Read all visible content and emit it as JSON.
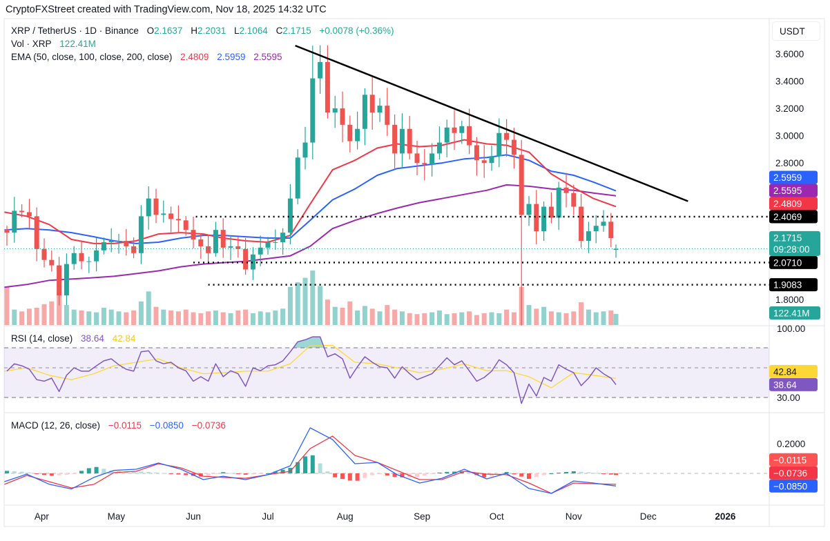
{
  "attribution": "CryptoFXStreet created with TradingView.com, Nov 18, 2025 14:32 UTC",
  "legend": {
    "symbol": "XRP / TetherUS · 1D · Binance",
    "o_label": "O",
    "open": "2.1637",
    "h_label": "H",
    "high": "2.2031",
    "l_label": "L",
    "low": "2.1064",
    "c_label": "C",
    "close": "2.1715",
    "change": "+0.0078 (+0.36%)",
    "vol_label": "Vol · XRP",
    "vol": "122.41M",
    "ema_label": "EMA (50, close, 100, close, 200, close)",
    "ema50": "2.4809",
    "ema100": "2.5959",
    "ema200": "2.5595"
  },
  "rsi_legend": {
    "label": "RSI (14, close)",
    "rsi": "38.64",
    "ma": "42.84"
  },
  "macd_legend": {
    "label": "MACD (12, 26, close)",
    "hist": "−0.0115",
    "macd": "−0.0850",
    "signal": "−0.0736"
  },
  "price_axis": {
    "currency": "USDT",
    "ticks": [
      "3.6000",
      "3.4000",
      "3.2000",
      "3.0000",
      "2.8000",
      "1.8000"
    ],
    "badges": [
      {
        "label": "2.5959",
        "value": 2.5959,
        "color": "#2962ff"
      },
      {
        "label": "2.5595",
        "value": 2.5595,
        "color": "#9c27b0"
      },
      {
        "label": "2.4809",
        "value": 2.4809,
        "color": "#f23645"
      },
      {
        "label": "2.4069",
        "value": 2.4069,
        "color": "#000000"
      },
      {
        "label": "2.1715",
        "sub": "09:28:00",
        "value": 2.1715,
        "color": "#26a69a"
      },
      {
        "label": "2.0710",
        "value": 2.071,
        "color": "#000000"
      },
      {
        "label": "1.9083",
        "value": 1.9083,
        "color": "#000000"
      }
    ],
    "volume_badge": {
      "label": "122.41M",
      "color": "#26a69a"
    }
  },
  "rsi_axis": {
    "ticks": [
      "100.00",
      "30.00"
    ],
    "badges": [
      {
        "label": "42.84",
        "value": 42.84,
        "color": "#fdd835",
        "text": "#131722"
      },
      {
        "label": "38.64",
        "value": 38.64,
        "color": "#7e57c2",
        "text": "#ffffff"
      }
    ]
  },
  "macd_axis": {
    "ticks": [
      "0.2000"
    ],
    "badges": [
      {
        "label": "−0.0115",
        "value": -0.0115,
        "color": "#ff5252"
      },
      {
        "label": "−0.0736",
        "value": -0.0736,
        "color": "#f23645"
      },
      {
        "label": "−0.0850",
        "value": -0.085,
        "color": "#2962ff"
      }
    ]
  },
  "time_axis": {
    "ticks": [
      {
        "label": "Apr",
        "date": "2025-04-01"
      },
      {
        "label": "May",
        "date": "2025-05-01"
      },
      {
        "label": "Jun",
        "date": "2025-06-01"
      },
      {
        "label": "Jul",
        "date": "2025-07-01"
      },
      {
        "label": "Aug",
        "date": "2025-08-01"
      },
      {
        "label": "Sep",
        "date": "2025-09-01"
      },
      {
        "label": "Oct",
        "date": "2025-10-01"
      },
      {
        "label": "Nov",
        "date": "2025-11-01"
      },
      {
        "label": "Dec",
        "date": "2025-12-01"
      },
      {
        "label": "2026",
        "date": "2026-01-01",
        "bold": true
      }
    ]
  },
  "colors": {
    "up": "#26a69a",
    "down": "#ef5350",
    "ema50": "#f23645",
    "ema100": "#2962ff",
    "ema200": "#9c27b0",
    "rsi": "#7e57c2",
    "rsi_ma": "#fdd835",
    "macd": "#2962ff",
    "signal": "#f23645",
    "trendline": "#000000",
    "levels": "#000000"
  },
  "chart_data": [
    {
      "type": "candlestick",
      "ylim": [
        1.6,
        3.75
      ],
      "dates": [
        "2025-03-18",
        "2025-03-21",
        "2025-03-24",
        "2025-03-27",
        "2025-03-30",
        "2025-04-02",
        "2025-04-05",
        "2025-04-08",
        "2025-04-11",
        "2025-04-14",
        "2025-04-17",
        "2025-04-20",
        "2025-04-23",
        "2025-04-26",
        "2025-04-29",
        "2025-05-02",
        "2025-05-05",
        "2025-05-08",
        "2025-05-11",
        "2025-05-14",
        "2025-05-17",
        "2025-05-20",
        "2025-05-23",
        "2025-05-26",
        "2025-05-29",
        "2025-06-01",
        "2025-06-04",
        "2025-06-07",
        "2025-06-10",
        "2025-06-13",
        "2025-06-16",
        "2025-06-19",
        "2025-06-22",
        "2025-06-25",
        "2025-06-28",
        "2025-07-01",
        "2025-07-04",
        "2025-07-07",
        "2025-07-10",
        "2025-07-13",
        "2025-07-16",
        "2025-07-19",
        "2025-07-22",
        "2025-07-25",
        "2025-07-28",
        "2025-07-31",
        "2025-08-03",
        "2025-08-06",
        "2025-08-09",
        "2025-08-12",
        "2025-08-15",
        "2025-08-18",
        "2025-08-21",
        "2025-08-24",
        "2025-08-27",
        "2025-08-30",
        "2025-09-02",
        "2025-09-05",
        "2025-09-08",
        "2025-09-11",
        "2025-09-14",
        "2025-09-17",
        "2025-09-20",
        "2025-09-23",
        "2025-09-26",
        "2025-09-29",
        "2025-10-02",
        "2025-10-05",
        "2025-10-08",
        "2025-10-11",
        "2025-10-14",
        "2025-10-17",
        "2025-10-20",
        "2025-10-23",
        "2025-10-26",
        "2025-10-29",
        "2025-11-01",
        "2025-11-04",
        "2025-11-07",
        "2025-11-10",
        "2025-11-13",
        "2025-11-16",
        "2025-11-18"
      ],
      "close": [
        2.29,
        2.45,
        2.44,
        2.41,
        2.17,
        2.09,
        2.05,
        1.83,
        2.06,
        2.14,
        2.08,
        2.08,
        2.16,
        2.22,
        2.23,
        2.23,
        2.19,
        2.14,
        2.41,
        2.54,
        2.42,
        2.43,
        2.39,
        2.38,
        2.31,
        2.24,
        2.19,
        2.14,
        2.31,
        2.18,
        2.19,
        2.17,
        2.02,
        2.13,
        2.18,
        2.22,
        2.22,
        2.29,
        2.54,
        2.84,
        2.95,
        3.42,
        3.54,
        3.17,
        3.2,
        3.08,
        2.96,
        3.05,
        3.3,
        3.17,
        3.22,
        3.08,
        2.87,
        3.05,
        2.87,
        2.8,
        2.79,
        2.87,
        2.95,
        3.06,
        3.02,
        3.07,
        2.93,
        2.82,
        2.8,
        2.85,
        3.02,
        2.97,
        2.86,
        2.42,
        2.5,
        2.3,
        2.48,
        2.4,
        2.62,
        2.58,
        2.48,
        2.23,
        2.3,
        2.34,
        2.37,
        2.25,
        2.1715
      ],
      "last_candle": {
        "open": 2.1637,
        "high": 2.2031,
        "low": 2.1064,
        "close": 2.1715
      },
      "extreme_wicks": [
        {
          "date": "2025-10-11",
          "low": 1.61
        },
        {
          "date": "2025-07-19",
          "high": 3.66
        }
      ],
      "volume_millions": [
        420,
        170,
        150,
        180,
        190,
        230,
        260,
        330,
        220,
        170,
        160,
        150,
        140,
        190,
        170,
        150,
        140,
        160,
        260,
        370,
        200,
        170,
        160,
        150,
        170,
        140,
        130,
        150,
        160,
        140,
        130,
        160,
        170,
        130,
        150,
        140,
        160,
        180,
        420,
        470,
        520,
        600,
        430,
        280,
        200,
        190,
        260,
        160,
        210,
        180,
        150,
        220,
        170,
        150,
        130,
        120,
        130,
        140,
        160,
        120,
        130,
        140,
        150,
        110,
        130,
        140,
        130,
        170,
        140,
        420,
        220,
        180,
        200,
        150,
        140,
        130,
        150,
        250,
        170,
        140,
        150,
        160,
        122.41
      ],
      "ema_dates": [
        "2025-03-17",
        "2025-03-26",
        "2025-04-04",
        "2025-04-13",
        "2025-04-22",
        "2025-04-30",
        "2025-05-09",
        "2025-05-18",
        "2025-05-27",
        "2025-06-05",
        "2025-06-13",
        "2025-06-22",
        "2025-07-01",
        "2025-07-10",
        "2025-07-18",
        "2025-07-27",
        "2025-08-05",
        "2025-08-14",
        "2025-08-22",
        "2025-08-31",
        "2025-09-09",
        "2025-09-18",
        "2025-09-27",
        "2025-10-05",
        "2025-10-14",
        "2025-10-23",
        "2025-11-01",
        "2025-11-09",
        "2025-11-18"
      ],
      "ema50": [
        2.44,
        2.41,
        2.35,
        2.24,
        2.21,
        2.21,
        2.23,
        2.28,
        2.29,
        2.28,
        2.25,
        2.23,
        2.22,
        2.27,
        2.5,
        2.75,
        2.82,
        2.91,
        2.94,
        2.92,
        2.93,
        2.97,
        2.94,
        2.93,
        2.88,
        2.72,
        2.62,
        2.54,
        2.4809
      ],
      "ema100": [
        2.31,
        2.32,
        2.31,
        2.29,
        2.26,
        2.23,
        2.21,
        2.22,
        2.25,
        2.27,
        2.27,
        2.26,
        2.25,
        2.25,
        2.38,
        2.53,
        2.61,
        2.71,
        2.76,
        2.78,
        2.8,
        2.83,
        2.84,
        2.86,
        2.82,
        2.74,
        2.71,
        2.66,
        2.5959
      ],
      "ema200": [
        1.89,
        1.91,
        1.94,
        1.95,
        1.96,
        1.97,
        1.99,
        2.01,
        2.04,
        2.06,
        2.07,
        2.08,
        2.1,
        2.12,
        2.19,
        2.32,
        2.38,
        2.43,
        2.47,
        2.51,
        2.54,
        2.57,
        2.6,
        2.64,
        2.63,
        2.61,
        2.6,
        2.58,
        2.5595
      ],
      "trendline": {
        "start": {
          "date": "2025-07-12",
          "price": 3.66
        },
        "end": {
          "date": "2025-12-17",
          "price": 2.52
        }
      },
      "horizontal_levels": [
        {
          "price": 2.4069,
          "from": "2025-06-02"
        },
        {
          "price": 2.071,
          "from": "2025-06-01"
        },
        {
          "price": 1.9083,
          "from": "2025-06-07"
        }
      ],
      "current_price": 2.1715
    },
    {
      "type": "line",
      "title": "RSI (14, close)",
      "levels": [
        70,
        50,
        30
      ],
      "rsi": [
        47.7,
        54,
        52,
        49,
        42,
        41,
        43,
        34,
        45,
        50,
        47.7,
        47.7,
        52,
        57,
        59,
        53,
        49,
        47.7,
        66,
        67,
        57,
        54,
        55.5,
        50,
        48,
        41,
        44,
        41,
        54,
        44,
        48,
        46,
        37.5,
        50,
        48,
        52,
        53,
        57,
        66,
        76,
        78,
        81,
        81,
        61,
        64,
        59,
        43,
        51,
        61,
        55.5,
        51,
        50,
        43,
        51,
        46,
        42,
        44,
        46,
        52,
        60,
        53,
        57,
        48,
        41,
        43.5,
        47.7,
        58,
        53,
        46.7,
        26,
        39,
        31,
        43.5,
        41,
        53,
        49,
        46.7,
        38,
        43,
        50,
        46,
        43,
        38.64
      ],
      "rsi_ma": [
        47.7,
        50,
        45,
        42,
        46,
        52,
        55.5,
        59,
        50,
        46,
        46.7,
        47.7,
        47.7,
        54,
        72,
        72.5,
        55.5,
        54,
        50,
        46.7,
        49,
        54,
        48,
        48,
        44,
        36.5,
        46.7,
        45,
        42.84
      ]
    },
    {
      "type": "line",
      "title": "MACD (12, 26, close)",
      "macd": [
        -0.056,
        -0.005,
        -0.073,
        -0.105,
        -0.027,
        0.02,
        0.028,
        0.07,
        0.028,
        -0.042,
        -0.019,
        -0.042,
        -0.009,
        0.051,
        0.307,
        0.228,
        0.065,
        0.074,
        -0.009,
        -0.065,
        -0.033,
        0.028,
        -0.037,
        0.0,
        -0.102,
        -0.135,
        -0.051,
        -0.065,
        -0.085
      ],
      "signal": [
        -0.074,
        -0.014,
        -0.056,
        -0.098,
        -0.074,
        0.005,
        0.014,
        0.065,
        0.037,
        -0.019,
        -0.027,
        -0.033,
        -0.009,
        0.014,
        0.167,
        0.251,
        0.121,
        0.074,
        0.019,
        -0.042,
        -0.042,
        0.014,
        -0.005,
        -0.009,
        -0.065,
        -0.135,
        -0.065,
        -0.07,
        -0.0736
      ]
    }
  ]
}
